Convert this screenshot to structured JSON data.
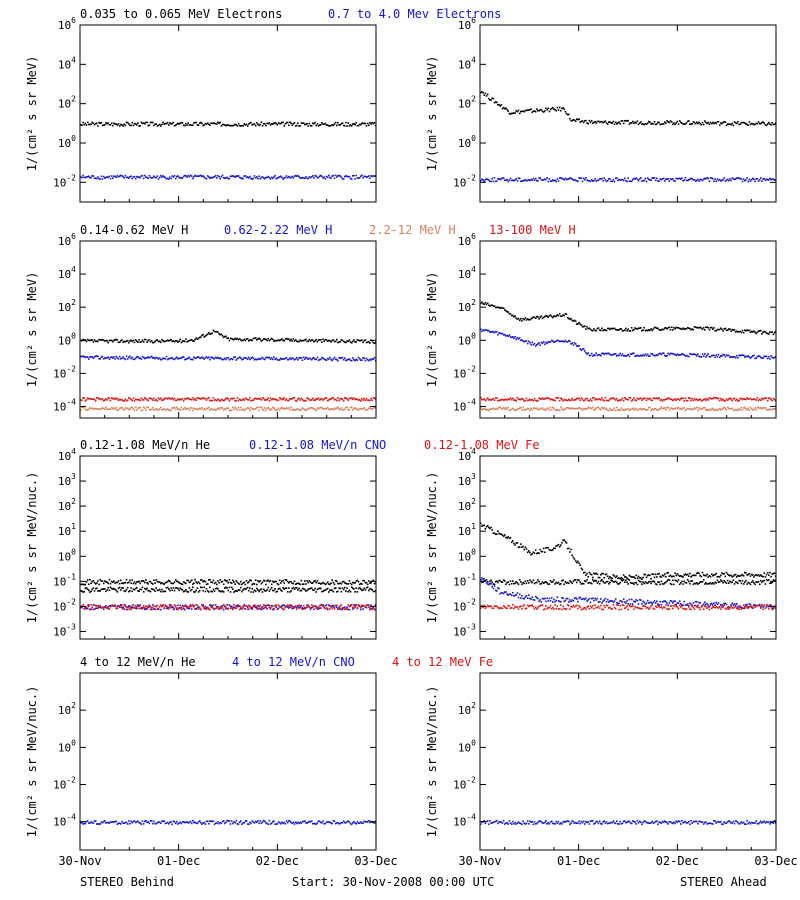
{
  "titles": {
    "electrons": [
      {
        "text": "0.035 to 0.065 MeV Electrons",
        "color": "#000000"
      },
      {
        "text": "0.7 to 4.0 Mev Electrons",
        "color": "#1414d2"
      }
    ],
    "protons": [
      {
        "text": "0.14-0.62 MeV H",
        "color": "#000000"
      },
      {
        "text": "0.62-2.22 MeV H",
        "color": "#1414d2"
      },
      {
        "text": "2.2-12 MeV H",
        "color": "#d7825f"
      },
      {
        "text": "13-100 MeV H",
        "color": "#dc1414"
      }
    ],
    "ions_low": [
      {
        "text": "0.12-1.08 MeV/n He",
        "color": "#000000"
      },
      {
        "text": "0.12-1.08 MeV/n CNO",
        "color": "#1414d2"
      },
      {
        "text": "0.12-1.08 MeV Fe",
        "color": "#dc1414"
      }
    ],
    "ions_high": [
      {
        "text": "4 to 12 MeV/n He",
        "color": "#000000"
      },
      {
        "text": "4 to 12 MeV/n CNO",
        "color": "#1414d2"
      },
      {
        "text": "4 to 12 MeV Fe",
        "color": "#dc1414"
      }
    ]
  },
  "ylabels": {
    "mev": "1/(cm² s sr MeV)",
    "nuc": "1/(cm² s sr MeV/nuc.)"
  },
  "xticks": [
    "30-Nov",
    "01-Dec",
    "02-Dec",
    "03-Dec"
  ],
  "footer": {
    "left": "STEREO Behind",
    "center": "Start: 30-Nov-2008 00:00 UTC",
    "right": "STEREO Ahead"
  },
  "chart_data": [
    {
      "type": "scatter",
      "panel": "behind-electrons",
      "ylim": [
        0.001,
        1000000
      ],
      "log": true,
      "yticks": [
        "10^-2",
        "10^0",
        "10^2",
        "10^4",
        "10^6"
      ],
      "series": [
        {
          "color": "#000000",
          "segments": [
            [
              0,
              10
            ],
            [
              3,
              10
            ]
          ]
        },
        {
          "color": "#1414d2",
          "segments": [
            [
              0,
              0.02
            ],
            [
              3,
              0.02
            ]
          ]
        }
      ]
    },
    {
      "type": "scatter",
      "panel": "ahead-electrons",
      "ylim": [
        0.001,
        1000000
      ],
      "log": true,
      "yticks": [
        "10^-2",
        "10^0",
        "10^2",
        "10^4",
        "10^6"
      ],
      "series": [
        {
          "color": "#000000",
          "segments": [
            [
              0,
              500
            ],
            [
              0.1,
              200
            ],
            [
              0.3,
              40
            ],
            [
              0.6,
              50
            ],
            [
              0.85,
              60
            ],
            [
              0.92,
              15
            ],
            [
              1.2,
              12
            ],
            [
              2,
              12
            ],
            [
              3,
              10
            ]
          ]
        },
        {
          "color": "#1414d2",
          "segments": [
            [
              0,
              0.015
            ],
            [
              3,
              0.015
            ]
          ]
        }
      ]
    },
    {
      "type": "scatter",
      "panel": "behind-protons",
      "ylim": [
        2e-05,
        1000000
      ],
      "log": true,
      "yticks": [
        "10^-4",
        "10^-2",
        "10^0",
        "10^2",
        "10^4",
        "10^6"
      ],
      "series": [
        {
          "color": "#000000",
          "segments": [
            [
              0,
              1
            ],
            [
              1.0,
              1
            ],
            [
              1.15,
              1.2
            ],
            [
              1.35,
              4
            ],
            [
              1.5,
              1.3
            ],
            [
              2,
              1.2
            ],
            [
              3,
              0.9
            ]
          ]
        },
        {
          "color": "#1414d2",
          "segments": [
            [
              0,
              0.1
            ],
            [
              3,
              0.08
            ]
          ]
        },
        {
          "color": "#d7825f",
          "segments": [
            [
              0,
              8e-05
            ],
            [
              3,
              8e-05
            ]
          ]
        },
        {
          "color": "#dc1414",
          "segments": [
            [
              0,
              0.0003
            ],
            [
              3,
              0.0003
            ]
          ]
        }
      ]
    },
    {
      "type": "scatter",
      "panel": "ahead-protons",
      "ylim": [
        2e-05,
        1000000
      ],
      "log": true,
      "yticks": [
        "10^-4",
        "10^-2",
        "10^0",
        "10^2",
        "10^4",
        "10^6"
      ],
      "series": [
        {
          "color": "#000000",
          "segments": [
            [
              0,
              200
            ],
            [
              0.2,
              100
            ],
            [
              0.4,
              20
            ],
            [
              0.6,
              25
            ],
            [
              0.85,
              40
            ],
            [
              0.95,
              15
            ],
            [
              1.1,
              5
            ],
            [
              1.5,
              5
            ],
            [
              2.2,
              6
            ],
            [
              3,
              3
            ]
          ]
        },
        {
          "color": "#1414d2",
          "segments": [
            [
              0,
              5
            ],
            [
              0.3,
              2
            ],
            [
              0.55,
              0.6
            ],
            [
              0.8,
              1.2
            ],
            [
              0.95,
              0.7
            ],
            [
              1.1,
              0.15
            ],
            [
              2,
              0.15
            ],
            [
              3,
              0.1
            ]
          ]
        },
        {
          "color": "#d7825f",
          "segments": [
            [
              0,
              8e-05
            ],
            [
              3,
              8e-05
            ]
          ]
        },
        {
          "color": "#dc1414",
          "segments": [
            [
              0,
              0.0003
            ],
            [
              3,
              0.0003
            ]
          ]
        }
      ]
    },
    {
      "type": "scatter",
      "panel": "behind-ions-low",
      "ylim": [
        0.0005,
        10000
      ],
      "log": true,
      "yticks": [
        "10^-3",
        "10^-2",
        "10^-1",
        "10^0",
        "10^1",
        "10^2",
        "10^3",
        "10^4"
      ],
      "series": [
        {
          "color": "#000000",
          "segments": [
            [
              0,
              0.1
            ],
            [
              3,
              0.1
            ]
          ]
        },
        {
          "color": "#000000",
          "segments": [
            [
              0,
              0.05
            ],
            [
              3,
              0.05
            ]
          ]
        },
        {
          "color": "#1414d2",
          "segments": [
            [
              0,
              0.01
            ],
            [
              3,
              0.01
            ]
          ]
        },
        {
          "color": "#dc1414",
          "segments": [
            [
              0,
              0.01
            ],
            [
              3,
              0.01
            ]
          ]
        }
      ]
    },
    {
      "type": "scatter",
      "panel": "ahead-ions-low",
      "ylim": [
        0.0005,
        10000
      ],
      "log": true,
      "yticks": [
        "10^-3",
        "10^-2",
        "10^-1",
        "10^0",
        "10^1",
        "10^2",
        "10^3",
        "10^4"
      ],
      "series": [
        {
          "color": "#000000",
          "segments": [
            [
              0,
              20
            ],
            [
              0.3,
              5
            ],
            [
              0.5,
              1.5
            ],
            [
              0.7,
              2
            ],
            [
              0.85,
              4
            ],
            [
              0.95,
              1
            ],
            [
              1.05,
              0.2
            ],
            [
              1.5,
              0.15
            ],
            [
              2,
              0.2
            ],
            [
              3,
              0.2
            ]
          ]
        },
        {
          "color": "#000000",
          "segments": [
            [
              1.05,
              0.1
            ],
            [
              3,
              0.1
            ]
          ]
        },
        {
          "color": "#1414d2",
          "segments": [
            [
              0,
              0.15
            ],
            [
              0.2,
              0.04
            ],
            [
              0.6,
              0.02
            ],
            [
              1.0,
              0.02
            ],
            [
              3,
              0.01
            ]
          ]
        },
        {
          "color": "#dc1414",
          "segments": [
            [
              0,
              0.01
            ],
            [
              3,
              0.01
            ]
          ]
        }
      ]
    },
    {
      "type": "scatter",
      "panel": "behind-ions-high",
      "ylim": [
        3e-06,
        10000
      ],
      "log": true,
      "yticks": [
        "10^-4",
        "10^-2",
        "10^0",
        "10^2"
      ],
      "series": [
        {
          "color": "#1414d2",
          "segments": [
            [
              0,
              0.0001
            ],
            [
              3,
              0.0001
            ]
          ]
        }
      ]
    },
    {
      "type": "scatter",
      "panel": "ahead-ions-high",
      "ylim": [
        3e-06,
        10000
      ],
      "log": true,
      "yticks": [
        "10^-4",
        "10^-2",
        "10^0",
        "10^2"
      ],
      "series": [
        {
          "color": "#1414d2",
          "segments": [
            [
              0,
              0.0001
            ],
            [
              3,
              0.0001
            ]
          ]
        }
      ]
    }
  ]
}
